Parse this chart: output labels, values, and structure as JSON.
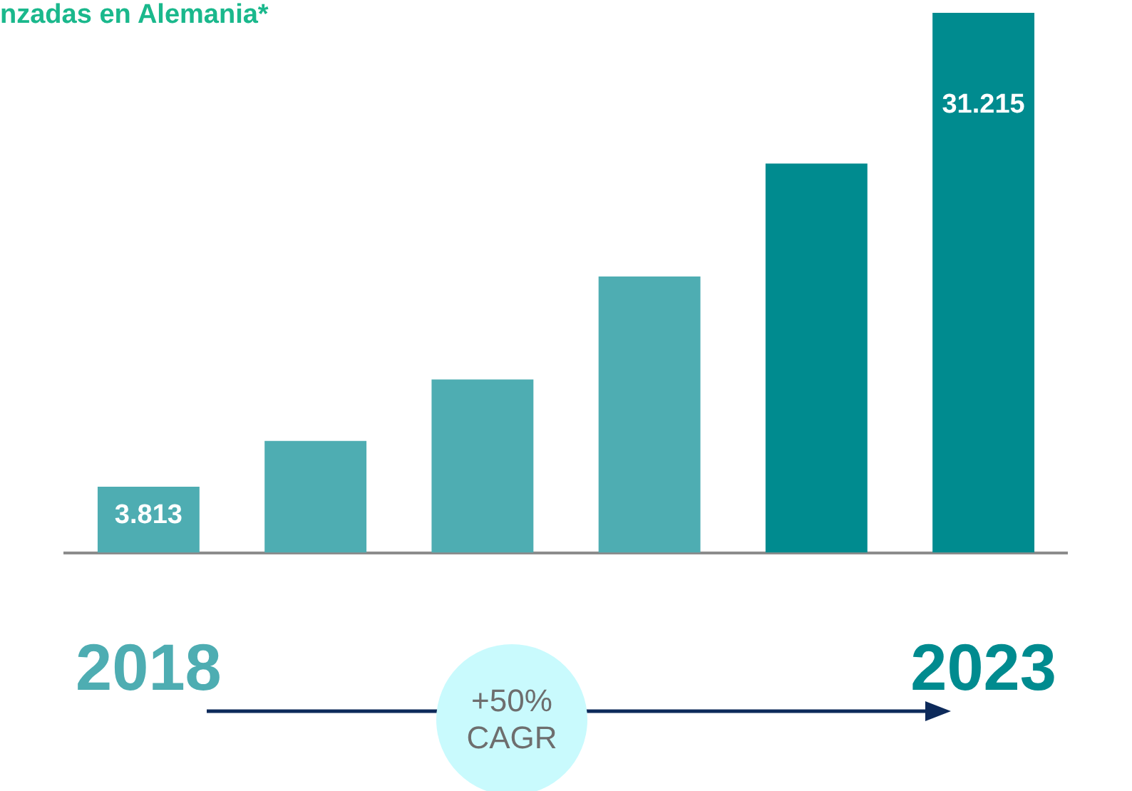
{
  "chart_data": {
    "type": "bar",
    "title": "nzadas en Alemania*",
    "categories": [
      "2018",
      null,
      null,
      null,
      null,
      "2023"
    ],
    "values": [
      3813,
      6460,
      10020,
      15970,
      22500,
      31215
    ],
    "colors": [
      "#4eadb2",
      "#4eadb2",
      "#4eadb2",
      "#4eadb2",
      "#008b8f",
      "#008b8f"
    ],
    "value_labels": [
      "3.813",
      null,
      null,
      null,
      null,
      "31.215"
    ],
    "annotations": [
      "+50% CAGR"
    ],
    "grid": false,
    "legend": false,
    "tick_labels": "x"
  }
}
